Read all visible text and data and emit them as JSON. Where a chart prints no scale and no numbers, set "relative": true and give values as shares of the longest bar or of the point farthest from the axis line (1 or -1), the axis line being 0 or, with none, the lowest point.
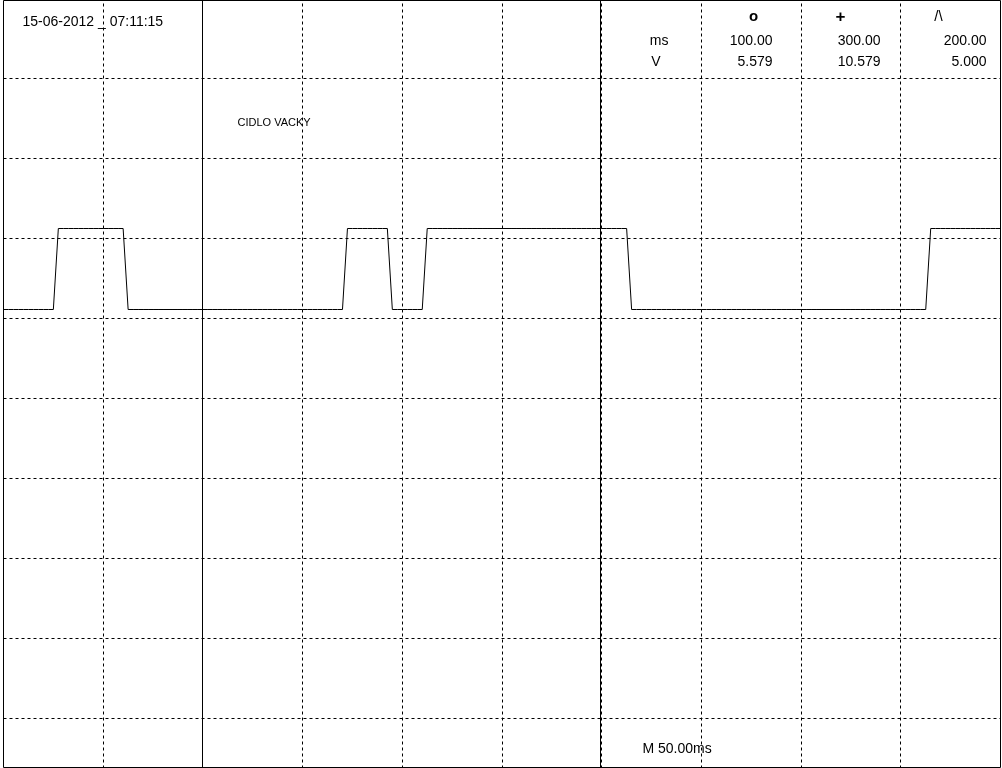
{
  "chart_data": {
    "type": "line",
    "title": "CIDLO VACKY",
    "relative": true,
    "categories": [
      null,
      null,
      null,
      null,
      null,
      null,
      null,
      null,
      null,
      null,
      null,
      null,
      null,
      null,
      null,
      null,
      null,
      null,
      null,
      null,
      null,
      null,
      null,
      null,
      null,
      null,
      null,
      null,
      null,
      null,
      null,
      null,
      null,
      null,
      null,
      null,
      null,
      null,
      null,
      null,
      null,
      null,
      null,
      null,
      null,
      null,
      null,
      null,
      null,
      null,
      null,
      null,
      null,
      null,
      null,
      null,
      null,
      null,
      null,
      null,
      null,
      null,
      null,
      null,
      null,
      null,
      null,
      null,
      null,
      null,
      null,
      null,
      null,
      null,
      null,
      null,
      null,
      null,
      null,
      null,
      null,
      null,
      null,
      null,
      null,
      null,
      null,
      null,
      null,
      null,
      null,
      null,
      null,
      null,
      null,
      null,
      null,
      null,
      null,
      null,
      null,
      null,
      null,
      null,
      null,
      null,
      null,
      null,
      null,
      null,
      null,
      null,
      null,
      null,
      null,
      null,
      null,
      null,
      null,
      null,
      null,
      null,
      null,
      null,
      null,
      null,
      null,
      null,
      null,
      null,
      null,
      null,
      null,
      null,
      null,
      null,
      null,
      null,
      null,
      null,
      null,
      null,
      null,
      null,
      null,
      null,
      null,
      null,
      null,
      null,
      null,
      null,
      null,
      null,
      null,
      null,
      null,
      null,
      null,
      null,
      null,
      null,
      null,
      null,
      null,
      null,
      null,
      null,
      null,
      null,
      null,
      null,
      null,
      null,
      null,
      null,
      null,
      null,
      null,
      null,
      null,
      null,
      null,
      null,
      null,
      null,
      null,
      null,
      null,
      null,
      null,
      null,
      null,
      null,
      null,
      null,
      null,
      null,
      null,
      null,
      null
    ],
    "series": [
      {
        "color": "#000000",
        "values": [
          0.85,
          0.85,
          0.85,
          0.85,
          0.85,
          0.85,
          0.85,
          0.85,
          0.85,
          0.85,
          0.85,
          1,
          1,
          1,
          1,
          1,
          1,
          1,
          1,
          1,
          1,
          1,
          1,
          1,
          1,
          0.85,
          0.85,
          0.85,
          0.85,
          0.85,
          0.85,
          0.85,
          0.85,
          0.85,
          0.85,
          0.85,
          0.85,
          0.85,
          0.85,
          0.85,
          0.85,
          0.85,
          0.85,
          0.85,
          0.85,
          0.85,
          0.85,
          0.85,
          0.85,
          0.85,
          0.85,
          0.85,
          0.85,
          0.85,
          0.85,
          0.85,
          0.85,
          0.85,
          0.85,
          0.85,
          0.85,
          0.85,
          0.85,
          0.85,
          0.85,
          0.85,
          0.85,
          0.85,
          0.85,
          1,
          1,
          1,
          1,
          1,
          1,
          1,
          1,
          1,
          0.85,
          0.85,
          0.85,
          0.85,
          0.85,
          0.85,
          0.85,
          1,
          1,
          1,
          1,
          1,
          1,
          1,
          1,
          1,
          1,
          1,
          1,
          1,
          1,
          1,
          1,
          1,
          1,
          1,
          1,
          1,
          1,
          1,
          1,
          1,
          1,
          1,
          1,
          1,
          1,
          1,
          1,
          1,
          1,
          1,
          1,
          1,
          1,
          1,
          1,
          1,
          0.85,
          0.85,
          0.85,
          0.85,
          0.85,
          0.85,
          0.85,
          0.85,
          0.85,
          0.85,
          0.85,
          0.85,
          0.85,
          0.85,
          0.85,
          0.85,
          0.85,
          0.85,
          0.85,
          0.85,
          0.85,
          0.85,
          0.85,
          0.85,
          0.85,
          0.85,
          0.85,
          0.85,
          0.85,
          0.85,
          0.85,
          0.85,
          0.85,
          0.85,
          0.85,
          0.85,
          0.85,
          0.85,
          0.85,
          0.85,
          0.85,
          0.85,
          0.85,
          0.85,
          0.85,
          0.85,
          0.85,
          0.85,
          0.85,
          0.85,
          0.85,
          0.85,
          0.85,
          0.85,
          0.85,
          0.85,
          0.85,
          0.85,
          0.85,
          0.85,
          1,
          1,
          1,
          1,
          1,
          1,
          1,
          1,
          1,
          1,
          1,
          1,
          1,
          1,
          1
        ]
      }
    ],
    "annotations": [
      "15-06-2012 _ 07:11:15",
      "o",
      "+",
      "/\\",
      "ms",
      "100.00",
      "300.00",
      "200.00",
      "V",
      "5.579",
      "10.579",
      "5.000",
      "M 50.00ms"
    ],
    "grid": true,
    "tick_labels": false,
    "marker": "none",
    "line_style": "solid"
  }
}
